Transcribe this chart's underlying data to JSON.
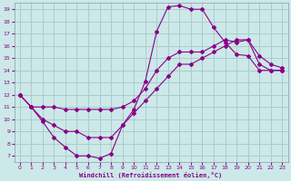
{
  "xlabel": "Windchill (Refroidissement éolien,°C)",
  "xlim": [
    -0.5,
    23.5
  ],
  "ylim": [
    6.5,
    19.5
  ],
  "xticks": [
    0,
    1,
    2,
    3,
    4,
    5,
    6,
    7,
    8,
    9,
    10,
    11,
    12,
    13,
    14,
    15,
    16,
    17,
    18,
    19,
    20,
    21,
    22,
    23
  ],
  "yticks": [
    7,
    8,
    9,
    10,
    11,
    12,
    13,
    14,
    15,
    16,
    17,
    18,
    19
  ],
  "bg_color": "#cce8e8",
  "grid_color": "#aacccc",
  "line_color": "#880088",
  "line1_x": [
    0,
    1,
    2,
    3,
    4,
    5,
    6,
    7,
    8,
    9,
    10,
    11,
    12,
    13,
    14,
    15,
    16,
    17,
    18,
    19,
    20,
    21,
    22,
    23
  ],
  "line1_y": [
    12,
    11,
    9.8,
    8.5,
    7.7,
    7.0,
    7.0,
    6.8,
    7.2,
    9.5,
    10.8,
    13.1,
    17.2,
    19.2,
    19.3,
    19.0,
    19.0,
    17.5,
    16.3,
    15.3,
    15.2,
    14.0,
    14.0,
    14.0
  ],
  "line2_x": [
    0,
    1,
    2,
    3,
    4,
    5,
    6,
    7,
    8,
    9,
    10,
    11,
    12,
    13,
    14,
    15,
    16,
    17,
    18,
    19,
    20,
    21,
    22,
    23
  ],
  "line2_y": [
    12,
    11,
    11,
    11,
    10.8,
    10.8,
    10.8,
    10.8,
    10.8,
    11.0,
    11.5,
    12.5,
    14.0,
    15.0,
    15.5,
    15.5,
    15.5,
    16.0,
    16.5,
    16.3,
    16.5,
    15.2,
    14.5,
    14.2
  ],
  "line3_x": [
    0,
    1,
    2,
    3,
    4,
    5,
    6,
    7,
    8,
    9,
    10,
    11,
    12,
    13,
    14,
    15,
    16,
    17,
    18,
    19,
    20,
    21,
    22,
    23
  ],
  "line3_y": [
    12,
    11,
    10.0,
    9.5,
    9.0,
    9.0,
    8.5,
    8.5,
    8.5,
    9.5,
    10.5,
    11.5,
    12.5,
    13.5,
    14.5,
    14.5,
    15.0,
    15.5,
    16.0,
    16.5,
    16.5,
    14.5,
    14.0,
    14.0
  ]
}
